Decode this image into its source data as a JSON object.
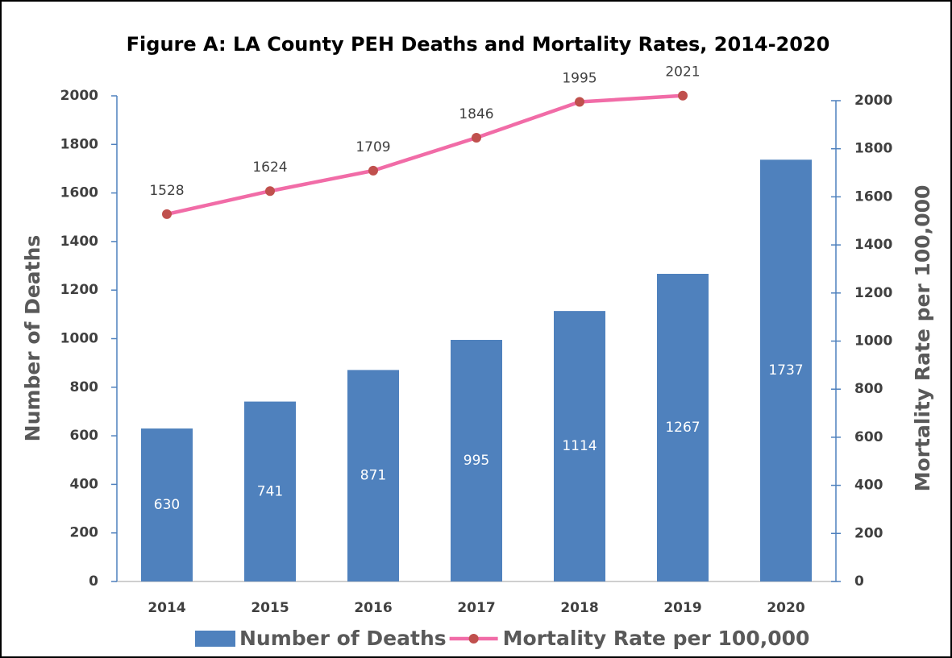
{
  "chart_data": {
    "type": "combo",
    "title": "Figure A: LA County PEH Deaths and Mortality Rates, 2014-2020",
    "y_label": "Number of Deaths",
    "y2_label": "Mortality Rate per 100,000",
    "categories": [
      "2014",
      "2015",
      "2016",
      "2017",
      "2018",
      "2019",
      "2020"
    ],
    "series": [
      {
        "name": "Number of Deaths",
        "type": "bar",
        "color": "#4f81bd",
        "label_color": "#ffffff",
        "values": [
          630,
          741,
          871,
          995,
          1114,
          1267,
          1737
        ]
      },
      {
        "name": "Mortality Rate per 100,000",
        "type": "line",
        "axis": "y2",
        "color": "#f16ca7",
        "marker_color": "#c0504d",
        "label_color": "#404040",
        "values": [
          1528,
          1624,
          1709,
          1846,
          1995,
          2021,
          null
        ]
      }
    ],
    "ylim": [
      0,
      2000
    ],
    "yticks": [
      0,
      200,
      400,
      600,
      800,
      1000,
      1200,
      1400,
      1600,
      1800,
      2000
    ],
    "y2lim": [
      0,
      2000
    ],
    "y2ticks": [
      0,
      200,
      400,
      600,
      800,
      1000,
      1200,
      1400,
      1600,
      1800,
      2000
    ],
    "legend": "bottom"
  }
}
